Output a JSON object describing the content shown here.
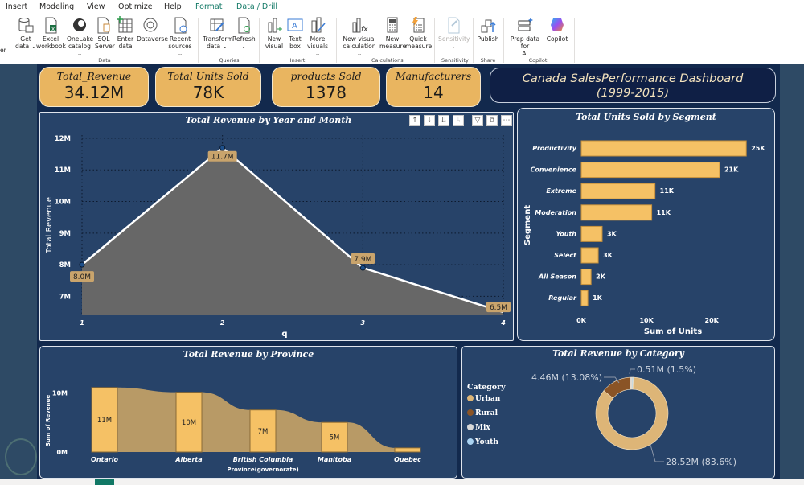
{
  "menu": {
    "tabs": [
      "Insert",
      "Modeling",
      "View",
      "Optimize",
      "Help",
      "Format",
      "Data / Drill"
    ],
    "active": "Format"
  },
  "ribbon": {
    "buttons": {
      "get_data": [
        "Get",
        "data ⌄"
      ],
      "excel": [
        "Excel",
        "workbook"
      ],
      "onelake": [
        "OneLake",
        "catalog ⌄"
      ],
      "sql": [
        "SQL",
        "Server"
      ],
      "enter": [
        "Enter",
        "data"
      ],
      "dataverse": [
        "Dataverse",
        ""
      ],
      "recent": [
        "Recent",
        "sources ⌄"
      ],
      "transform": [
        "Transform",
        "data ⌄"
      ],
      "refresh": [
        "Refresh",
        "⌄"
      ],
      "new_visual": [
        "New",
        "visual"
      ],
      "text_box": [
        "Text",
        "box"
      ],
      "more_visuals": [
        "More",
        "visuals ⌄"
      ],
      "new_visual_calc": [
        "New visual",
        "calculation ⌄"
      ],
      "new_measure": [
        "New",
        "measure"
      ],
      "quick_measure": [
        "Quick",
        "measure"
      ],
      "sensitivity": [
        "Sensitivity",
        "⌄"
      ],
      "publish": [
        "Publish",
        ""
      ],
      "prep_ai": [
        "Prep data for",
        "AI"
      ],
      "copilot": [
        "Copilot",
        ""
      ]
    },
    "groups": {
      "data": "Data",
      "queries": "Queries",
      "insert": "Insert",
      "calculations": "Calculations",
      "sensitivity": "Sensitivity",
      "share": "Share",
      "copilot": "Copilot"
    },
    "left_cut": "er"
  },
  "kpis": [
    {
      "label": "Total_Revenue",
      "value": "34.12M"
    },
    {
      "label": "Total Units Sold",
      "value": "78K"
    },
    {
      "label": "products Sold",
      "value": "1378"
    },
    {
      "label": "Manufacturers",
      "value": "14"
    }
  ],
  "dashboard_title": {
    "line1": "Canada SalesPerformance Dashboard",
    "line2": "(1999-2015)"
  },
  "colors": {
    "gold": "#e9b560",
    "bar": "#f5c165",
    "navy": "#274369",
    "area": "#676767",
    "ribbon_bg": "#b89a66",
    "urban": "#ddb577",
    "rural": "#8a5426",
    "mix": "#d8d8d8",
    "youth": "#aad3f2"
  },
  "chart_data": [
    {
      "type": "area",
      "title": "Total Revenue by Year and Month",
      "xlabel": "q",
      "ylabel": "Total Revenue",
      "x": [
        1,
        2,
        3,
        4
      ],
      "values": [
        8.0,
        11.7,
        7.9,
        6.5
      ],
      "data_labels": [
        "8.0M",
        "11.7M",
        "7.9M",
        "6.5M"
      ],
      "yticks": [
        "7M",
        "8M",
        "9M",
        "10M",
        "11M",
        "12M"
      ],
      "ytick_values": [
        7,
        8,
        9,
        10,
        11,
        12
      ],
      "ylim": [
        6.4,
        12.1
      ],
      "xticks": [
        "1",
        "2",
        "3",
        "4"
      ],
      "grid": true,
      "toolbar": [
        "↑",
        "↓",
        "⇊",
        "⑃",
        "▽",
        "⧉",
        "⋯"
      ]
    },
    {
      "type": "bar",
      "orientation": "horizontal",
      "title": "Total Units Sold by Segment",
      "xlabel": "Sum of Units",
      "ylabel": "Segment",
      "categories": [
        "Productivity",
        "Convenience",
        "Extreme",
        "Moderation",
        "Youth",
        "Select",
        "All Season",
        "Regular"
      ],
      "values": [
        25.3,
        21.2,
        11.3,
        10.8,
        3.2,
        2.6,
        1.5,
        1.0
      ],
      "data_labels": [
        "25K",
        "21K",
        "11K",
        "11K",
        "3K",
        "3K",
        "2K",
        "1K"
      ],
      "xticks": [
        "0K",
        "10K",
        "20K"
      ],
      "xtick_values": [
        0,
        10,
        20
      ],
      "xlim": [
        0,
        27
      ]
    },
    {
      "type": "bar",
      "subtype": "ribbon",
      "title": "Total Revenue by Province",
      "xlabel": "Province(governorate)",
      "ylabel": "Sum of Revenue",
      "categories": [
        "Ontario",
        "Alberta",
        "British Columbia",
        "Manitoba",
        "Quebec"
      ],
      "values": [
        10.9,
        10.1,
        7.1,
        5.0,
        0.7
      ],
      "data_labels": [
        "11M",
        "10M",
        "7M",
        "5M",
        ""
      ],
      "yticks": [
        "0M",
        "10M"
      ],
      "ytick_values": [
        0,
        10
      ],
      "ylim": [
        0,
        11
      ]
    },
    {
      "type": "pie",
      "subtype": "donut",
      "title": "Total Revenue by Category",
      "legend_title": "Category",
      "legend_position": "left",
      "categories": [
        "Urban",
        "Rural",
        "Mix",
        "Youth"
      ],
      "values": [
        28.52,
        4.46,
        0.29,
        0.22
      ],
      "percent": [
        83.6,
        13.08,
        0.85,
        0.65
      ],
      "data_labels": {
        "urban": "28.52M (83.6%)",
        "rural": "4.46M (13.08%)",
        "small": "0.51M (1.5%)"
      }
    }
  ]
}
